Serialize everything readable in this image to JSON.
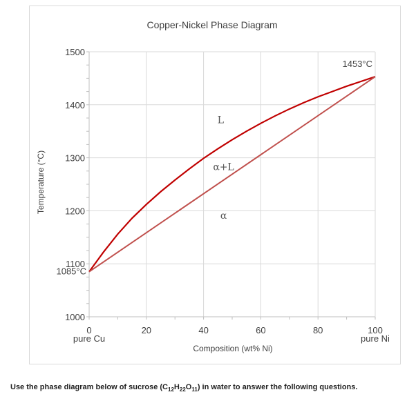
{
  "colors": {
    "liquidus": "#c00000",
    "solidus": "#c0504d",
    "grid": "#d9d9d9",
    "axis": "#bfbfbf",
    "text": "#404040"
  },
  "question": {
    "prefix": "Use the phase diagram below of sucrose (C",
    "sub1": "12",
    "mid1": "H",
    "sub2": "22",
    "mid2": "O",
    "sub3": "11",
    "suffix": ") in water to answer the following questions."
  },
  "chart_data": {
    "type": "line",
    "title": "Copper-Nickel Phase Diagram",
    "xlabel": "Composition (wt% Ni)",
    "ylabel": "Temperature (°C)",
    "xlim": [
      0,
      100
    ],
    "ylim": [
      1000,
      1500
    ],
    "x_ticks": [
      {
        "value": 0,
        "label": "0",
        "sublabel": "pure Cu"
      },
      {
        "value": 20,
        "label": "20",
        "sublabel": ""
      },
      {
        "value": 40,
        "label": "40",
        "sublabel": ""
      },
      {
        "value": 60,
        "label": "60",
        "sublabel": ""
      },
      {
        "value": 80,
        "label": "80",
        "sublabel": ""
      },
      {
        "value": 100,
        "label": "100",
        "sublabel": "pure Ni"
      }
    ],
    "y_ticks": [
      {
        "value": 1000,
        "label": "1000"
      },
      {
        "value": 1100,
        "label": "1100"
      },
      {
        "value": 1200,
        "label": "1200"
      },
      {
        "value": 1300,
        "label": "1300"
      },
      {
        "value": 1400,
        "label": "1400"
      },
      {
        "value": 1500,
        "label": "1500"
      }
    ],
    "grid": true,
    "series": [
      {
        "key": "liquidus",
        "x": [
          0,
          5,
          10,
          15,
          20,
          25,
          30,
          35,
          40,
          45,
          50,
          55,
          60,
          65,
          70,
          75,
          80,
          85,
          90,
          95,
          100
        ],
        "y": [
          1085,
          1122,
          1156,
          1186,
          1212,
          1236,
          1258,
          1279,
          1299,
          1317,
          1334,
          1350,
          1365,
          1379,
          1392,
          1404,
          1415,
          1425,
          1435,
          1444,
          1453
        ]
      },
      {
        "key": "solidus",
        "x": [
          0,
          100
        ],
        "y": [
          1085,
          1453
        ]
      }
    ],
    "annotations": [
      {
        "text": "1453°C",
        "x": 100,
        "y": 1453
      },
      {
        "text": "1085°C",
        "x": 0,
        "y": 1085
      },
      {
        "text": "L",
        "x": 46,
        "y": 1365
      },
      {
        "text": "α+L",
        "x": 47,
        "y": 1277
      },
      {
        "text": "α",
        "x": 47,
        "y": 1185
      }
    ]
  }
}
